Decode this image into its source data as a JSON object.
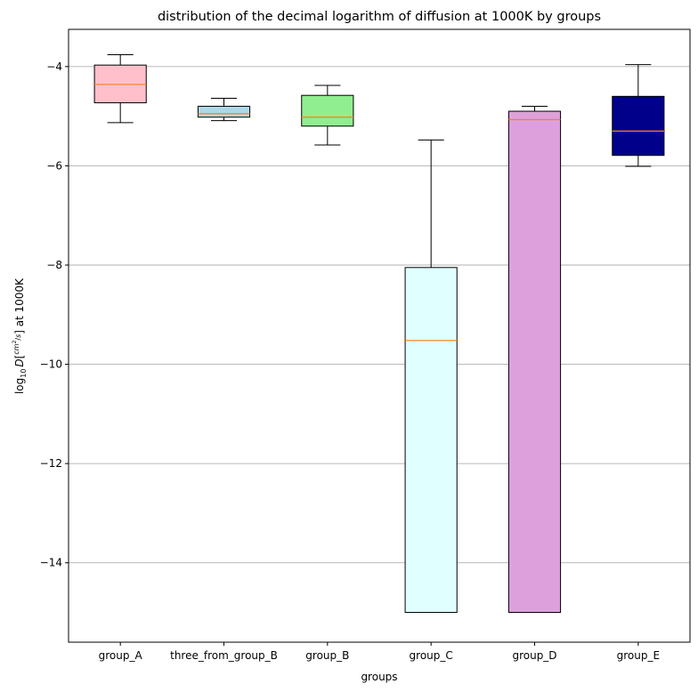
{
  "chart_data": {
    "type": "box",
    "title": "distribution of the decimal logarithm of diffusion at 1000K by groups",
    "xlabel": "groups",
    "ylabel": {
      "prefix": "log",
      "base": "10",
      "var": "D",
      "unit_numerator": "cm",
      "unit_power": "2",
      "unit_denominator": "s",
      "suffix": "at 1000K"
    },
    "ylim": [
      -15.6,
      -3.25
    ],
    "yticks": [
      -4,
      -6,
      -8,
      -10,
      -12,
      -14
    ],
    "ytick_labels": [
      "−4",
      "−6",
      "−8",
      "−10",
      "−12",
      "−14"
    ],
    "grid": "y",
    "categories": [
      "group_A",
      "three_from_group_B",
      "group_B",
      "group_C",
      "group_D",
      "group_E"
    ],
    "boxes": [
      {
        "category": "group_A",
        "whisker_low": -5.13,
        "q1": -4.73,
        "median": -4.36,
        "q3": -3.97,
        "whisker_high": -3.76,
        "color": "#ffc0cb"
      },
      {
        "category": "three_from_group_B",
        "whisker_low": -5.09,
        "q1": -5.02,
        "median": -4.95,
        "q3": -4.8,
        "whisker_high": -4.64,
        "color": "#add8e6"
      },
      {
        "category": "group_B",
        "whisker_low": -5.58,
        "q1": -5.2,
        "median": -5.02,
        "q3": -4.58,
        "whisker_high": -4.38,
        "color": "#90ee90"
      },
      {
        "category": "group_C",
        "whisker_low": -15.0,
        "q1": -15.0,
        "median": -9.52,
        "q3": -8.05,
        "whisker_high": -5.48,
        "color": "#e0ffff"
      },
      {
        "category": "group_D",
        "whisker_low": -15.0,
        "q1": -15.0,
        "median": -5.07,
        "q3": -4.9,
        "whisker_high": -4.8,
        "color": "#dda0dd"
      },
      {
        "category": "group_E",
        "whisker_low": -6.01,
        "q1": -5.79,
        "median": -5.3,
        "q3": -4.6,
        "whisker_high": -3.96,
        "color": "#00008b"
      }
    ],
    "median_color": "#ff7f0e"
  }
}
